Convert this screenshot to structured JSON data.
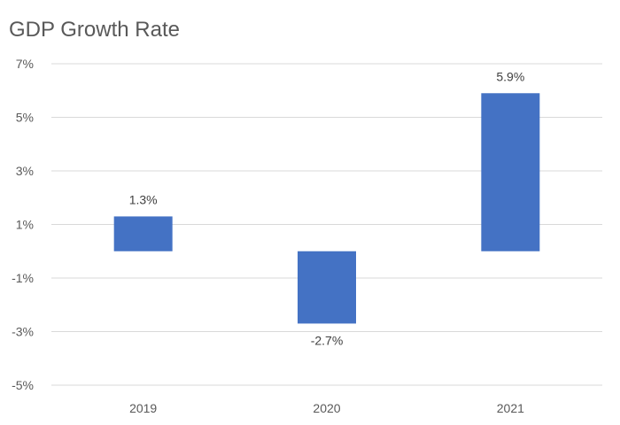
{
  "chart_data": {
    "type": "bar",
    "title": "GDP Growth Rate",
    "categories": [
      "2019",
      "2020",
      "2021"
    ],
    "values": [
      1.3,
      -2.7,
      5.9
    ],
    "data_labels": [
      "1.3%",
      "-2.7%",
      "5.9%"
    ],
    "ylim": [
      -5,
      7
    ],
    "yticks": [
      7,
      5,
      3,
      1,
      -1,
      -3,
      -5
    ],
    "ytick_labels": [
      "7%",
      "5%",
      "3%",
      "1%",
      "-1%",
      "-3%",
      "-5%"
    ],
    "grid": true,
    "bar_color": "#4472c4",
    "grid_color": "#d9d9d9",
    "text_color": "#595959"
  }
}
